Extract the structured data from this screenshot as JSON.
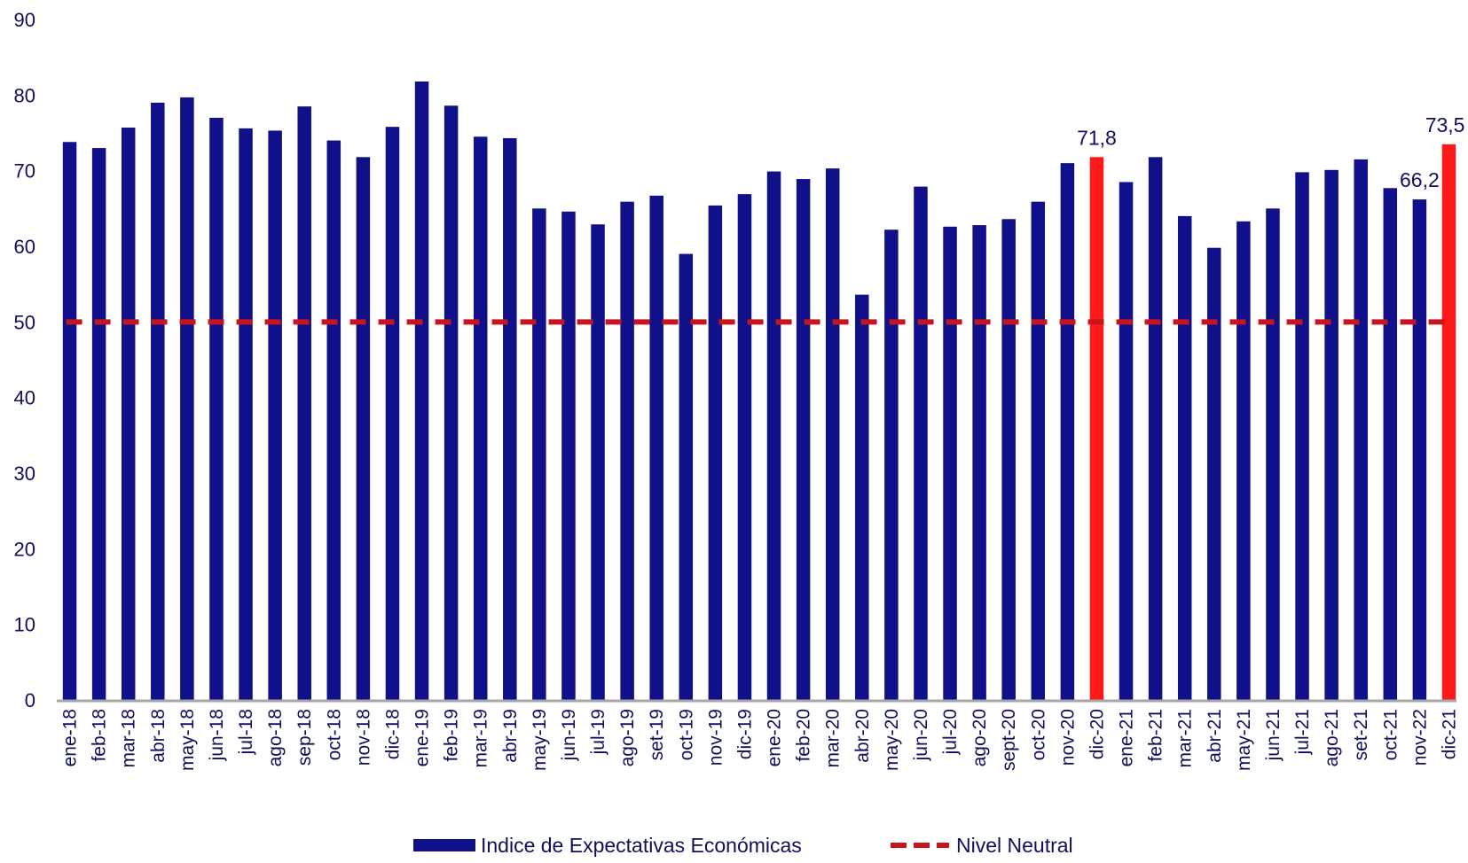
{
  "chart_data": {
    "type": "bar",
    "title": "",
    "xlabel": "",
    "ylabel": "",
    "ylim": [
      0,
      90
    ],
    "yticks": [
      "0",
      "10",
      "20",
      "30",
      "40",
      "50",
      "60",
      "70",
      "80",
      "90"
    ],
    "grid": false,
    "legend_position": "bottom",
    "categories": [
      "ene-18",
      "feb-18",
      "mar-18",
      "abr-18",
      "may-18",
      "jun-18",
      "jul-18",
      "ago-18",
      "sep-18",
      "oct-18",
      "nov-18",
      "dic-18",
      "ene-19",
      "feb-19",
      "mar-19",
      "abr-19",
      "may-19",
      "jun-19",
      "jul-19",
      "ago-19",
      "set-19",
      "oct-19",
      "nov-19",
      "dic-19",
      "ene-20",
      "feb-20",
      "mar-20",
      "abr-20",
      "may-20",
      "jun-20",
      "jul-20",
      "ago-20",
      "sept-20",
      "oct-20",
      "nov-20",
      "dic-20",
      "ene-21",
      "feb-21",
      "mar-21",
      "abr-21",
      "may-21",
      "jun-21",
      "jul-21",
      "ago-21",
      "set-21",
      "oct-21",
      "nov-22",
      "dic-21"
    ],
    "series": [
      {
        "name": "Indice de Expectativas Económicas",
        "color": "#10108a",
        "highlight_color": "#ff1a1a",
        "highlight_indices": [
          35,
          47
        ],
        "values": [
          73.8,
          73.0,
          75.7,
          79.0,
          79.7,
          77.0,
          75.6,
          75.3,
          78.5,
          74.0,
          71.8,
          75.8,
          81.8,
          78.6,
          74.5,
          74.3,
          65.0,
          64.6,
          62.9,
          65.9,
          66.7,
          59.0,
          65.4,
          66.9,
          69.9,
          68.9,
          70.3,
          53.6,
          62.2,
          67.9,
          62.6,
          62.8,
          63.6,
          65.9,
          71.0,
          71.8,
          68.5,
          71.8,
          64.0,
          59.8,
          63.3,
          65.0,
          69.8,
          70.1,
          71.5,
          67.7,
          66.2,
          73.5
        ]
      },
      {
        "name": "Nivel Neutral",
        "color": "#c8141e",
        "value": 50
      }
    ],
    "data_labels": [
      {
        "index": 35,
        "text": "71,8"
      },
      {
        "index": 46,
        "text": "66,2"
      },
      {
        "index": 47,
        "text": "73,5"
      }
    ]
  },
  "legend": {
    "bar_label": "Indice de Expectativas Económicas",
    "line_label": "Nivel Neutral"
  }
}
